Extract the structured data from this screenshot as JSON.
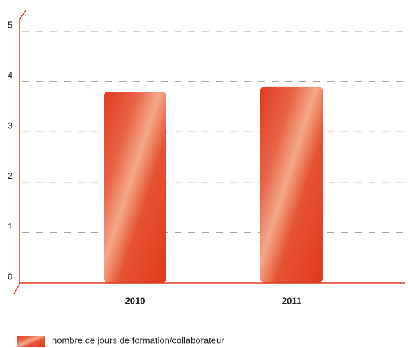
{
  "chart_data": {
    "type": "bar",
    "categories": [
      "2010",
      "2011"
    ],
    "series": [
      {
        "name": "nombre de jours de formation/collaborateur",
        "color": "#e0391c",
        "values": [
          3.8,
          3.9
        ]
      }
    ],
    "ylim": [
      0,
      5.4
    ],
    "yticks": [
      0,
      1,
      2,
      3,
      4,
      5
    ],
    "grid": true,
    "legend": "bottom"
  }
}
